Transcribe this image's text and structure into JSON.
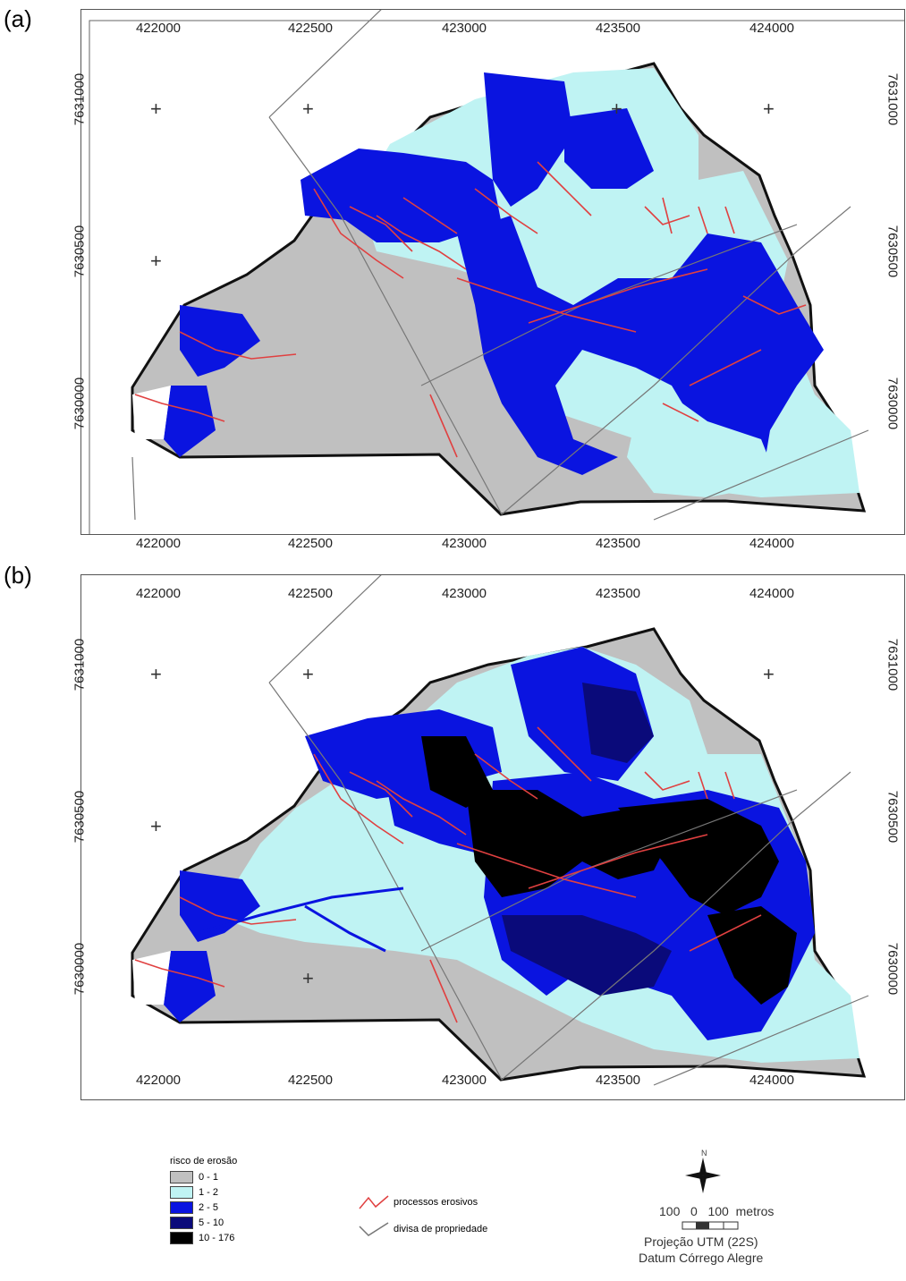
{
  "panels": [
    {
      "label": "(a)"
    },
    {
      "label": "(b)"
    }
  ],
  "axes": {
    "x_ticks": [
      "422000",
      "422500",
      "423000",
      "423500",
      "424000"
    ],
    "y_ticks": [
      "7631000",
      "7630500",
      "7630000"
    ]
  },
  "legend": {
    "title": "risco de erosão",
    "classes": [
      {
        "label": "0 - 1",
        "color": "#c0c0c0"
      },
      {
        "label": "1 - 2",
        "color": "#bff3f3"
      },
      {
        "label": "2 - 5",
        "color": "#0a14e0"
      },
      {
        "label": "5 - 10",
        "color": "#0a0a7a"
      },
      {
        "label": "10 - 176",
        "color": "#000000"
      }
    ],
    "lines": [
      {
        "label": "processos erosivos",
        "color": "#e04040"
      },
      {
        "label": "divisa de propriedade",
        "color": "#777777"
      }
    ]
  },
  "map_info": {
    "north": "N",
    "scale_text": "100   0   100  metros",
    "projection": "Projeção UTM (22S)",
    "datum": "Datum Córrego Alegre"
  }
}
